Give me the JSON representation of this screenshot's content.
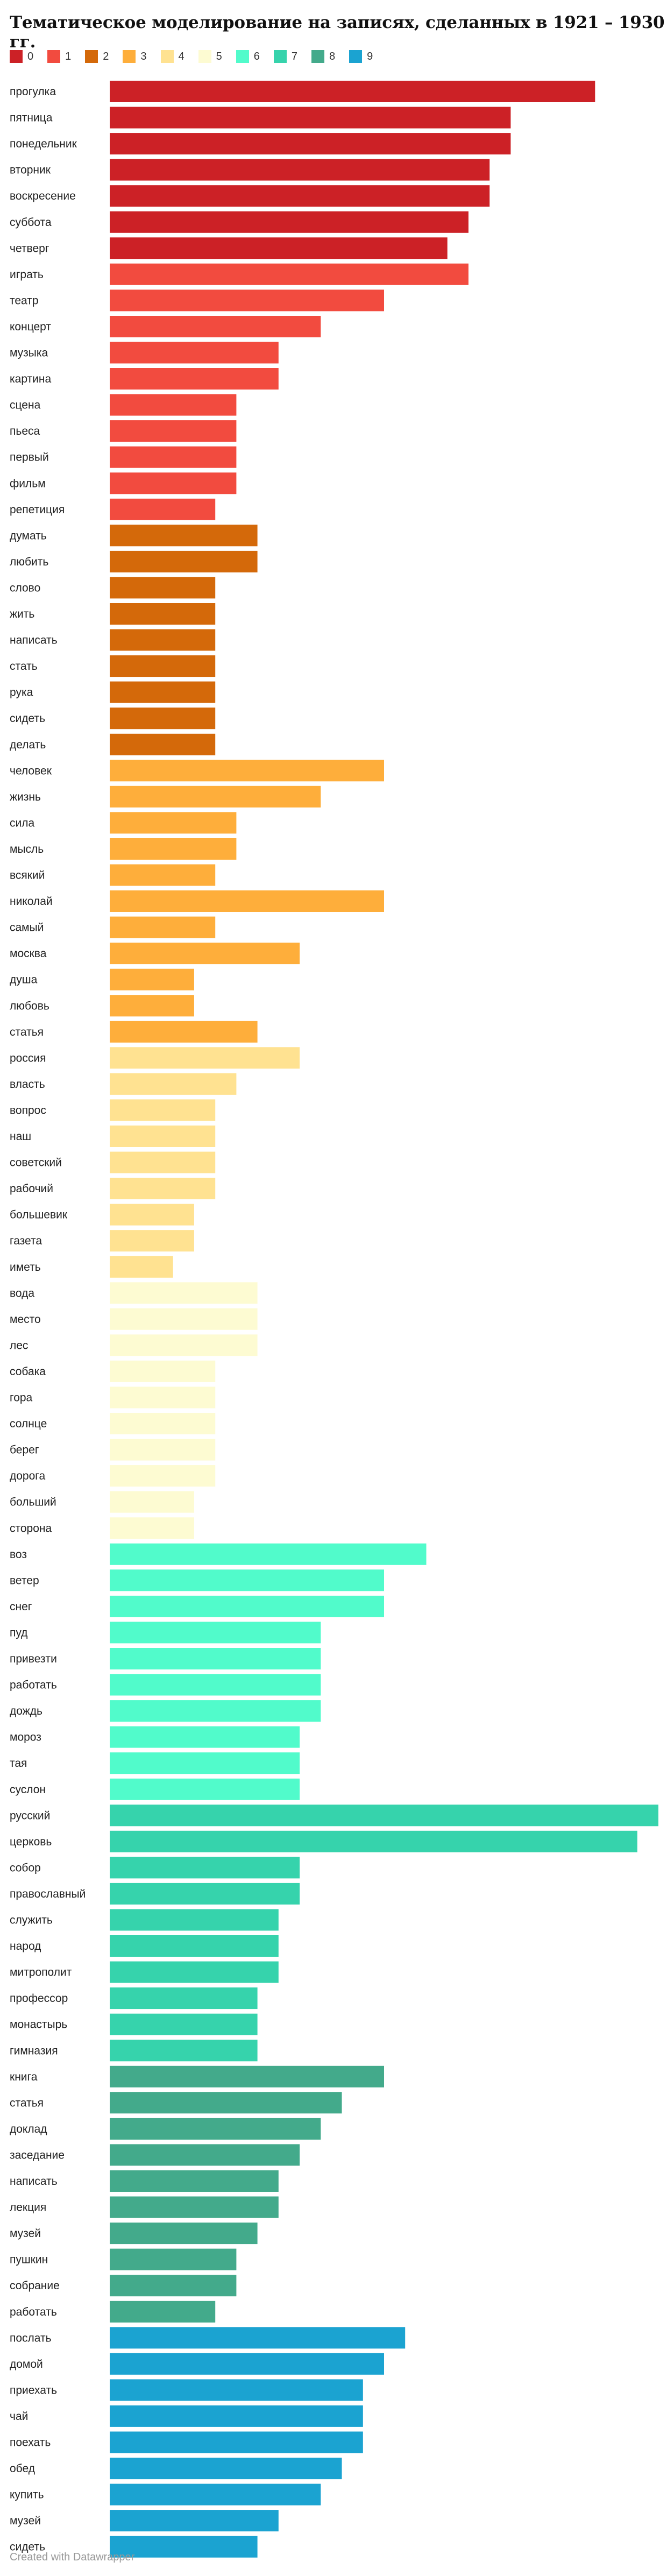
{
  "chart_data": {
    "type": "bar",
    "title": "Тематическое моделирование на записях, сделанных в 1921 – 1930 гг.",
    "legend_position": "top-left",
    "grid": false,
    "xlim": [
      0,
      26
    ],
    "topics": [
      {
        "name": "0",
        "color": "#cc2126"
      },
      {
        "name": "1",
        "color": "#f24b3f"
      },
      {
        "name": "2",
        "color": "#d4690a"
      },
      {
        "name": "3",
        "color": "#feae3b"
      },
      {
        "name": "4",
        "color": "#ffe291"
      },
      {
        "name": "5",
        "color": "#fdfbd2"
      },
      {
        "name": "6",
        "color": "#51fbcb"
      },
      {
        "name": "7",
        "color": "#36d3ac"
      },
      {
        "name": "8",
        "color": "#43aa8b"
      },
      {
        "name": "9",
        "color": "#1ba3d1"
      }
    ],
    "categories": [
      "прогулка",
      "пятница",
      "понедельник",
      "вторник",
      "воскресение",
      "суббота",
      "четверг",
      "играть",
      "театр",
      "концерт",
      "музыка",
      "картина",
      "сцена",
      "пьеса",
      "первый",
      "фильм",
      "репетиция",
      "думать",
      "любить",
      "слово",
      "жить",
      "написать",
      "стать",
      "рука",
      "сидеть",
      "делать",
      "человек",
      "жизнь",
      "сила",
      "мысль",
      "всякий",
      "николай",
      "самый",
      "москва",
      "душа",
      "любовь",
      "статья",
      "россия",
      "власть",
      "вопрос",
      "наш",
      "советский",
      "рабочий",
      "большевик",
      "газета",
      "иметь",
      "вода",
      "место",
      "лес",
      "собака",
      "гора",
      "солнце",
      "берег",
      "дорога",
      "больший",
      "сторона",
      "воз",
      "ветер",
      "снег",
      "пуд",
      "привезти",
      "работать",
      "дождь",
      "мороз",
      "тая",
      "суслон",
      "русский",
      "церковь",
      "собор",
      "православный",
      "служить",
      "народ",
      "митрополит",
      "профессор",
      "монастырь",
      "гимназия",
      "книга",
      "статья",
      "доклад",
      "заседание",
      "написать",
      "лекция",
      "музей",
      "пушкин",
      "собрание",
      "работать",
      "послать",
      "домой",
      "приехать",
      "чай",
      "поехать",
      "обед",
      "купить",
      "музей",
      "сидеть"
    ],
    "values": [
      23,
      19,
      19,
      18,
      18,
      17,
      16,
      17,
      13,
      10,
      8,
      8,
      6,
      6,
      6,
      6,
      5,
      7,
      7,
      5,
      5,
      5,
      5,
      5,
      5,
      5,
      13,
      10,
      6,
      6,
      5,
      13,
      5,
      9,
      4,
      4,
      7,
      9,
      6,
      5,
      5,
      5,
      5,
      4,
      4,
      3,
      7,
      7,
      7,
      5,
      5,
      5,
      5,
      5,
      4,
      4,
      15,
      13,
      13,
      10,
      10,
      10,
      10,
      9,
      9,
      9,
      26,
      25,
      9,
      9,
      8,
      8,
      8,
      7,
      7,
      7,
      13,
      11,
      10,
      9,
      8,
      8,
      7,
      6,
      6,
      5,
      14,
      13,
      12,
      12,
      12,
      11,
      10,
      8,
      7
    ],
    "topic_index": [
      0,
      0,
      0,
      0,
      0,
      0,
      0,
      1,
      1,
      1,
      1,
      1,
      1,
      1,
      1,
      1,
      1,
      2,
      2,
      2,
      2,
      2,
      2,
      2,
      2,
      2,
      3,
      3,
      3,
      3,
      3,
      3,
      3,
      3,
      3,
      3,
      3,
      4,
      4,
      4,
      4,
      4,
      4,
      4,
      4,
      4,
      5,
      5,
      5,
      5,
      5,
      5,
      5,
      5,
      5,
      5,
      6,
      6,
      6,
      6,
      6,
      6,
      6,
      6,
      6,
      6,
      7,
      7,
      7,
      7,
      7,
      7,
      7,
      7,
      7,
      7,
      8,
      8,
      8,
      8,
      8,
      8,
      8,
      8,
      8,
      8,
      9,
      9,
      9,
      9,
      9,
      9,
      9,
      9,
      9
    ]
  },
  "footer": {
    "credit": "Created with Datawrapper"
  }
}
